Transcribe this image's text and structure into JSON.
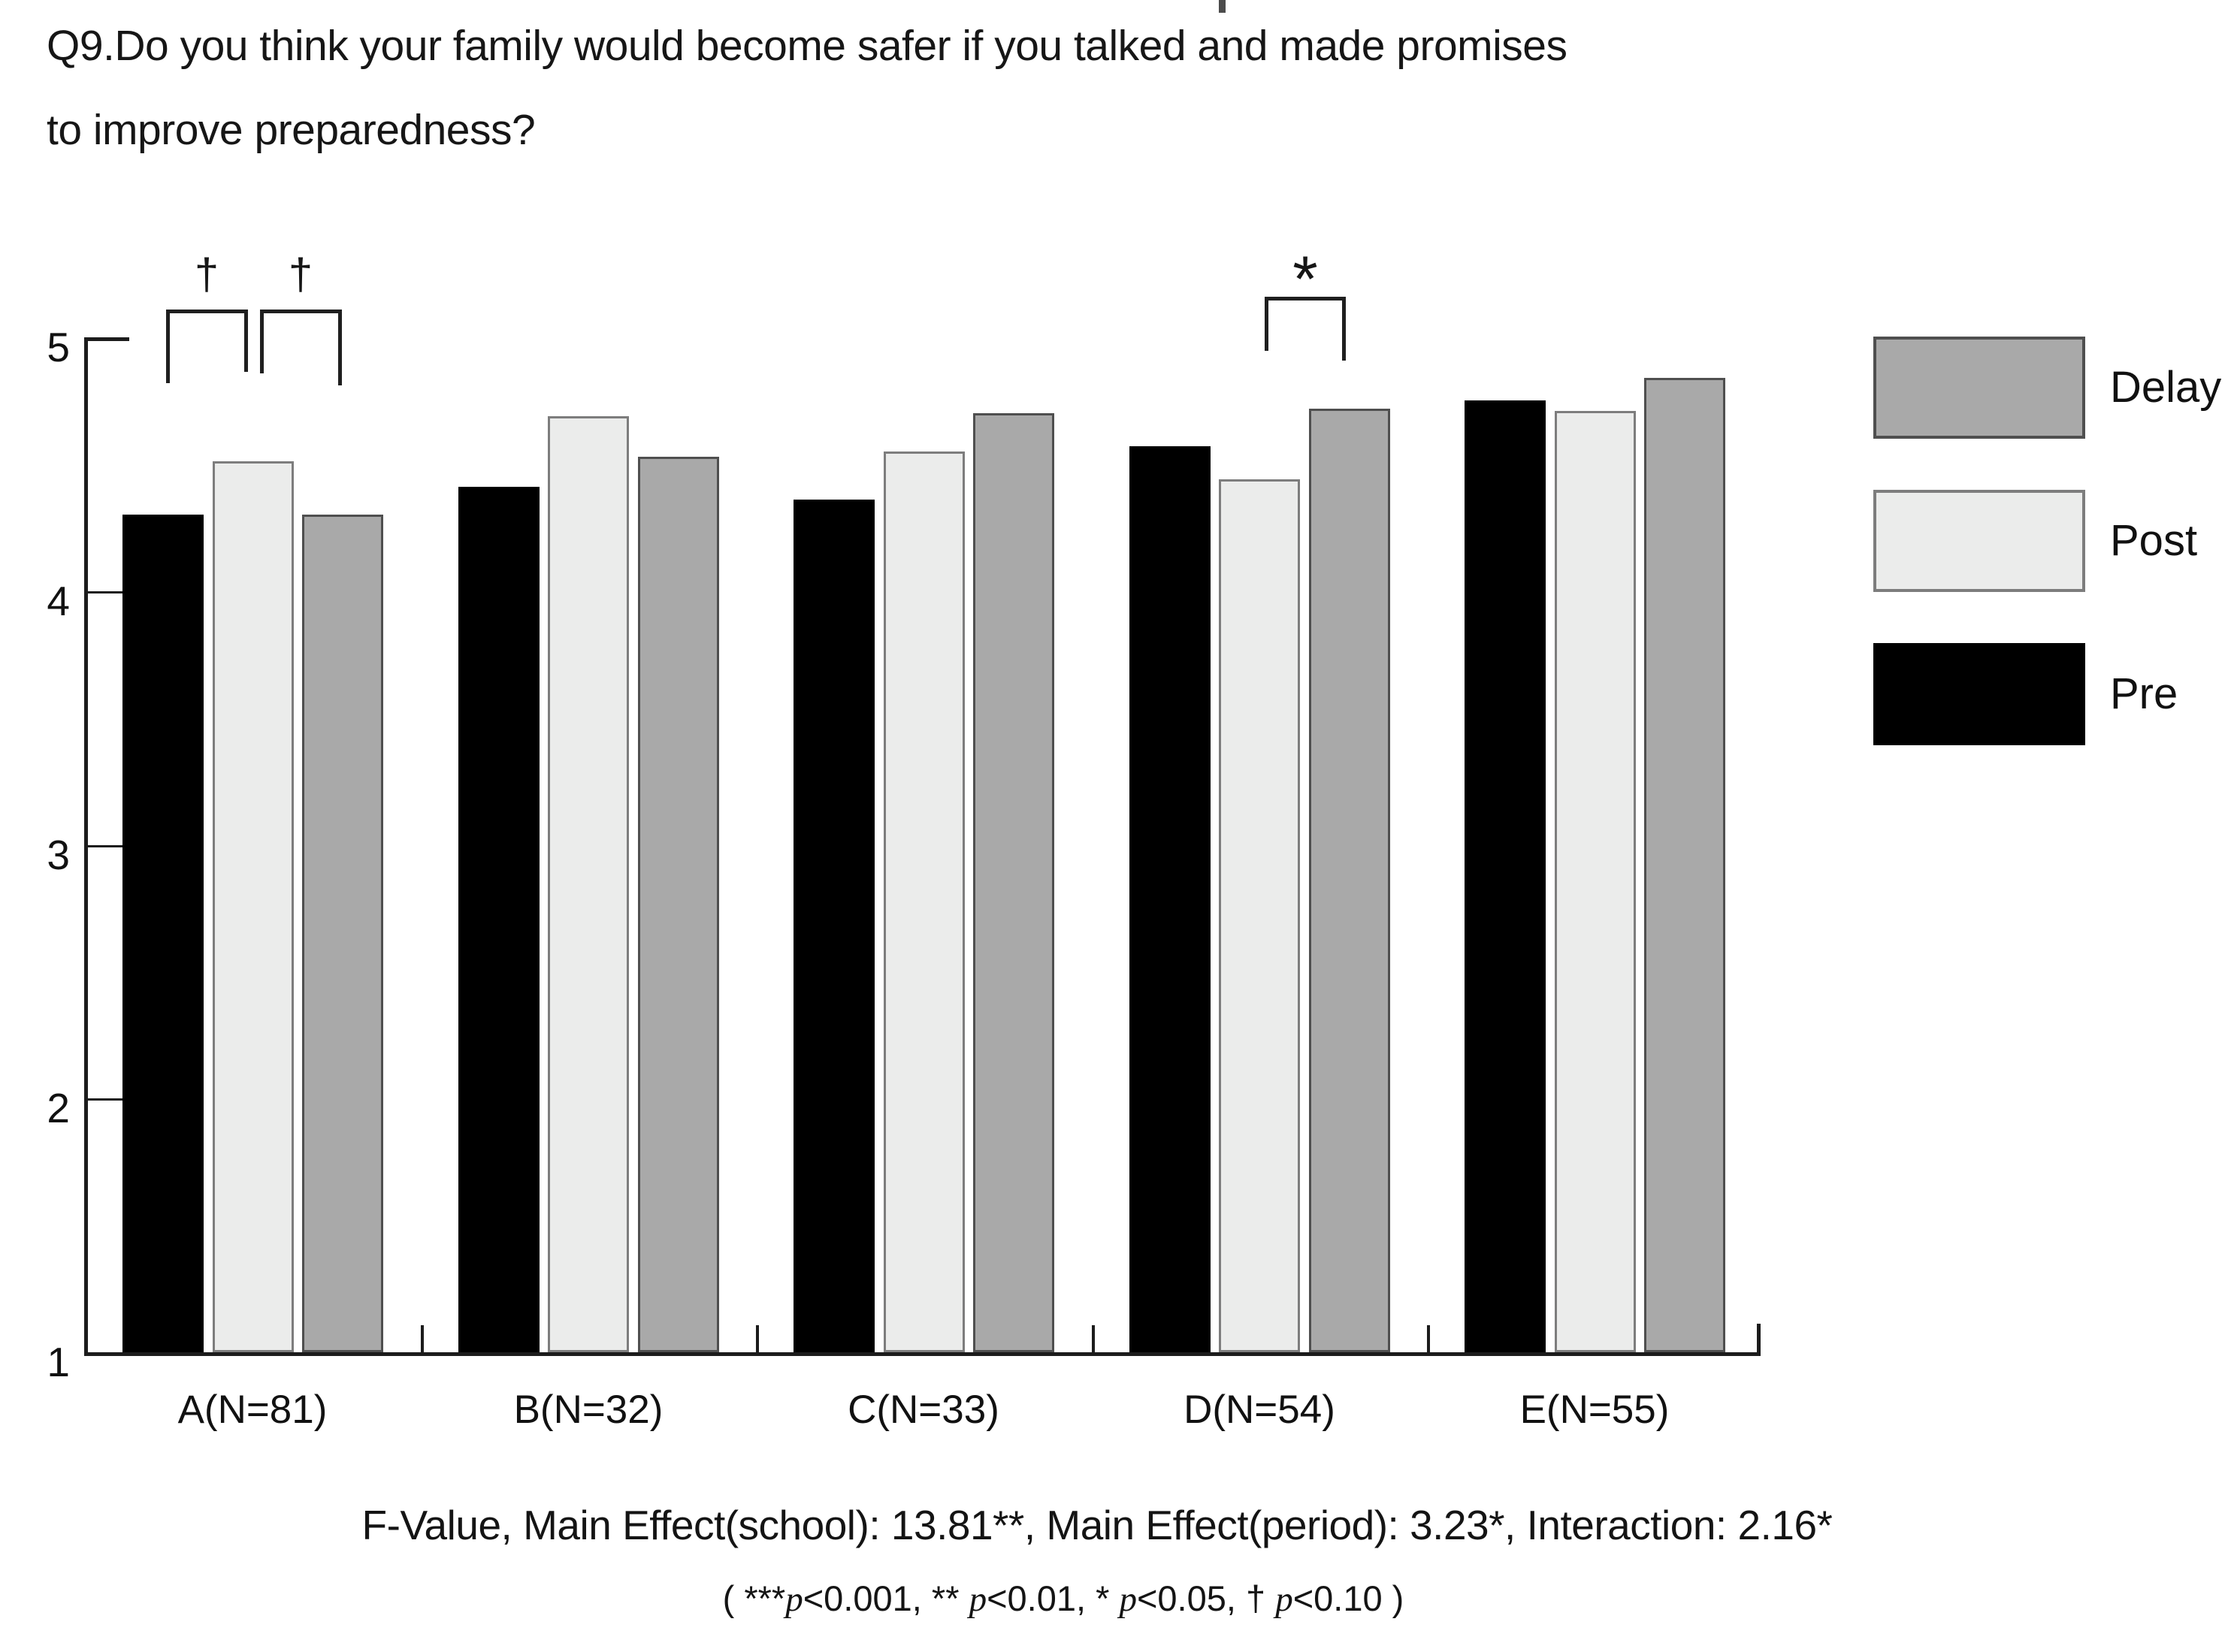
{
  "title": {
    "line1": "Q9.Do you think your family would become safer if you talked and made promises",
    "line2": "to improve preparedness?"
  },
  "chart_data": {
    "type": "bar",
    "title": "Q9.Do you think your family would become safer if you talked and made promises to improve preparedness?",
    "categories": [
      "A(N=81)",
      "B(N=32)",
      "C(N=33)",
      "D(N=54)",
      "E(N=55)"
    ],
    "series": [
      {
        "name": "Pre",
        "color": "#000000",
        "border": "#000000",
        "values": [
          4.3,
          4.41,
          4.36,
          4.57,
          4.75
        ]
      },
      {
        "name": "Post",
        "color": "#ebeceb",
        "border": "#7d7d7d",
        "values": [
          4.51,
          4.69,
          4.55,
          4.44,
          4.71
        ]
      },
      {
        "name": "Delay",
        "color": "#a9a9a9",
        "border": "#4f4f4f",
        "values": [
          4.3,
          4.53,
          4.7,
          4.72,
          4.84
        ]
      }
    ],
    "xlabel": "",
    "ylabel": "",
    "ylim": [
      1,
      5
    ],
    "yticks": [
      1,
      2,
      3,
      4,
      5
    ],
    "grid": false,
    "legend_position": "right",
    "legend_order": [
      "Delay",
      "Post",
      "Pre"
    ],
    "annotations": [
      {
        "symbol": "†",
        "group": "A(N=81)",
        "between": [
          "Pre",
          "Post"
        ],
        "meaning": "p<0.10"
      },
      {
        "symbol": "†",
        "group": "A(N=81)",
        "between": [
          "Post",
          "Delay"
        ],
        "meaning": "p<0.10"
      },
      {
        "symbol": "*",
        "group": "D(N=54)",
        "between": [
          "Post",
          "Delay"
        ],
        "meaning": "p<0.05"
      }
    ]
  },
  "y_axis": {
    "labels": [
      {
        "text": "5",
        "value": 5
      },
      {
        "text": "4",
        "value": 4
      },
      {
        "text": "3",
        "value": 3
      },
      {
        "text": "2",
        "value": 2
      },
      {
        "text": "1",
        "value": 1
      }
    ]
  },
  "legend": {
    "items": [
      {
        "label": "Delay",
        "color": "#a9a9a9",
        "border": "#4f4f4f"
      },
      {
        "label": "Post",
        "color": "#ebeceb",
        "border": "#7d7d7d"
      },
      {
        "label": "Pre",
        "color": "#000000",
        "border": "#000000"
      }
    ]
  },
  "footer": {
    "f_value_line": "F-Value, Main Effect(school): 13.81**, Main Effect(period): 3.23*, Interaction: 2.16*",
    "significance_note": "( ***p<0.001, ** p<0.01, * p<0.05, † p<0.10 )"
  }
}
